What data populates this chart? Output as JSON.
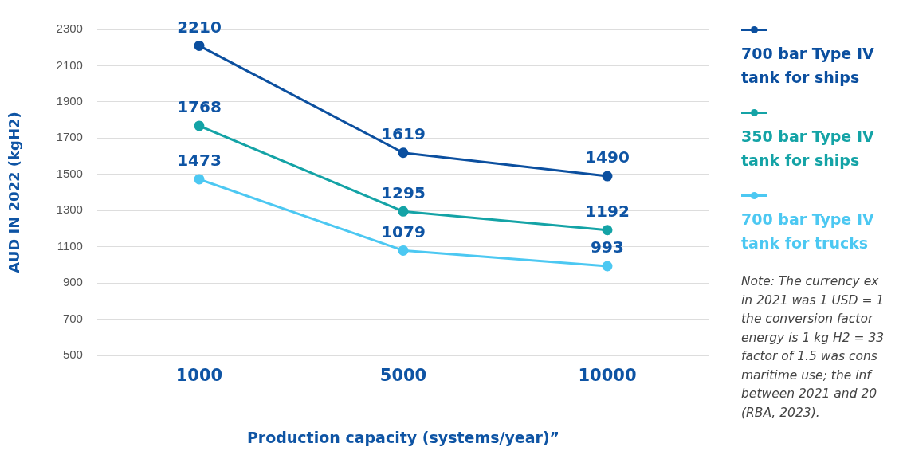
{
  "chart_data": {
    "type": "line",
    "xlabel": "Production capacity (systems/year)”",
    "ylabel": "AUD IN 2022 (kgH2)",
    "categories": [
      "1000",
      "5000",
      "10000"
    ],
    "series": [
      {
        "name": "700 bar Type IV tank for ships",
        "color": "#0b4f9f",
        "values": [
          2210,
          1619,
          1490
        ]
      },
      {
        "name": "350 bar Type IV tank for ships",
        "color": "#14a3a6",
        "values": [
          1768,
          1295,
          1192
        ]
      },
      {
        "name": "700 bar Type IV tank for trucks",
        "color": "#4cc8f2",
        "values": [
          1473,
          1079,
          993
        ]
      }
    ],
    "ylim": [
      500,
      2300
    ],
    "yticks": [
      500,
      700,
      900,
      1100,
      1300,
      1500,
      1700,
      1900,
      2100,
      2300
    ],
    "grid": "y",
    "legend": "right",
    "marker": "circle",
    "line_style": "solid",
    "data_labels": true,
    "annotations": [
      "Note: The currency ex\nin 2021 was 1 USD = 1\nthe conversion factor\nenergy is 1 kg H2 = 33\nfactor of 1.5 was cons\nmaritime use; the inf\nbetween 2021 and 20\n(RBA, 2023)."
    ]
  }
}
